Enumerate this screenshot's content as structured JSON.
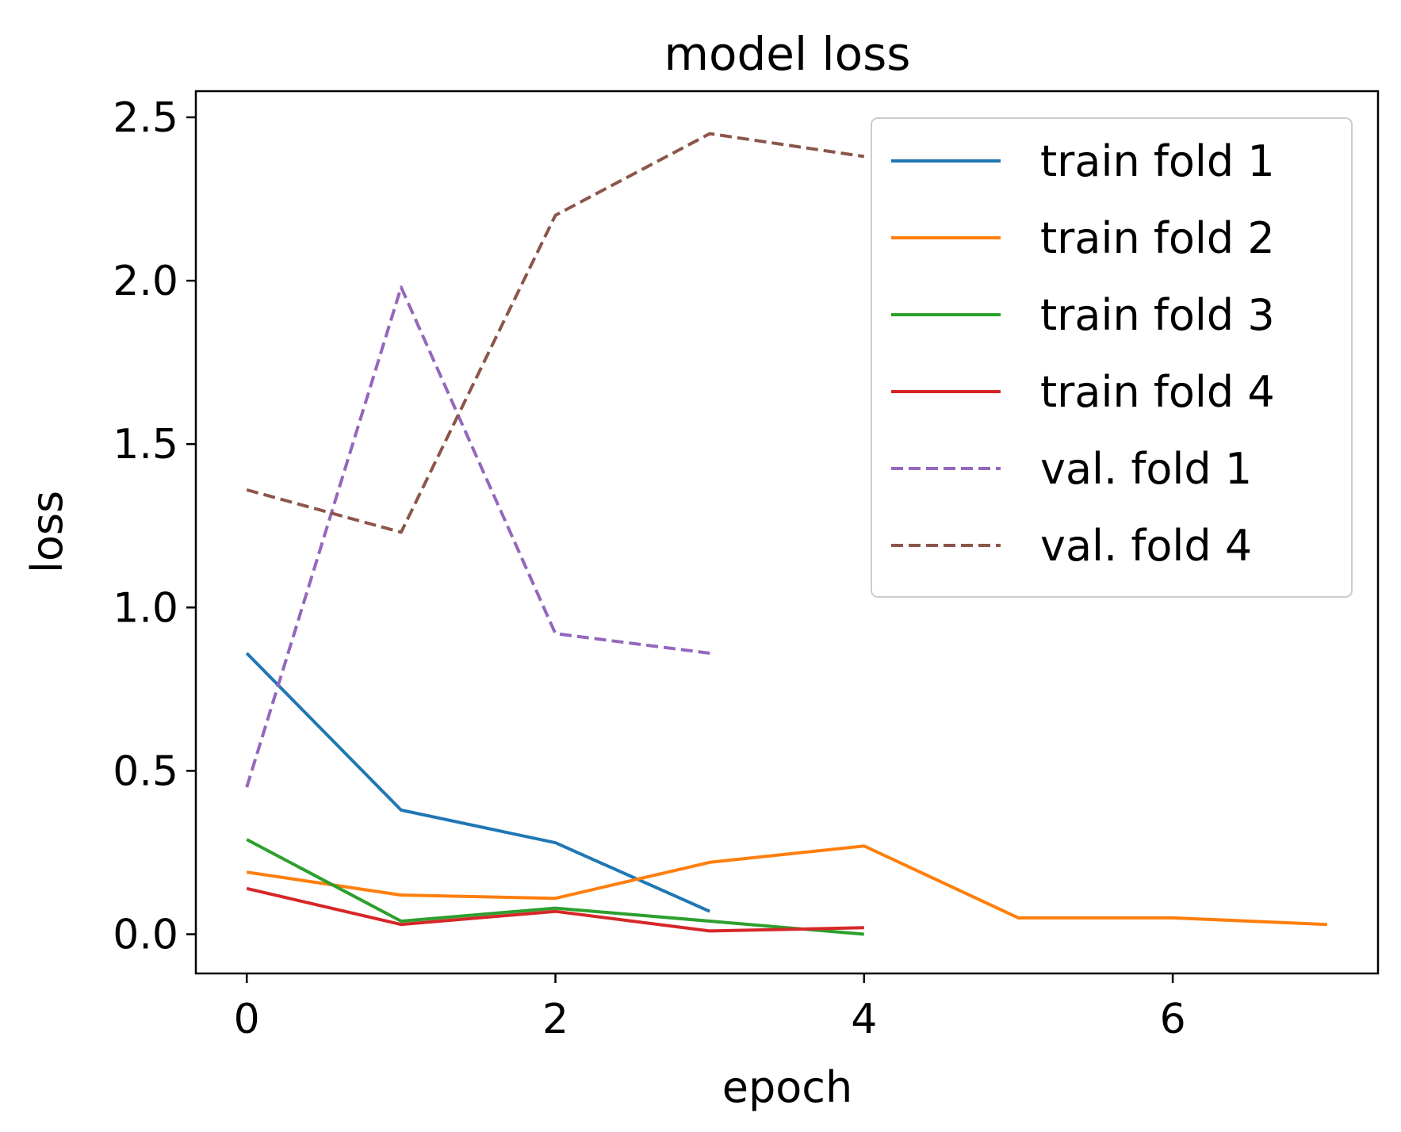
{
  "chart_data": {
    "type": "line",
    "title": "model loss",
    "xlabel": "epoch",
    "ylabel": "loss",
    "xlim": [
      -0.33,
      7.33
    ],
    "ylim": [
      -0.12,
      2.58
    ],
    "xticks": [
      0,
      2,
      4,
      6
    ],
    "xtick_labels": [
      "0",
      "2",
      "4",
      "6"
    ],
    "yticks": [
      0.0,
      0.5,
      1.0,
      1.5,
      2.0,
      2.5
    ],
    "ytick_labels": [
      "0.0",
      "0.5",
      "1.0",
      "1.5",
      "2.0",
      "2.5"
    ],
    "grid": false,
    "legend_position": "top-right",
    "series": [
      {
        "name": "train fold 1",
        "color": "#1f77b4",
        "dash": "solid",
        "x": [
          0,
          1,
          2,
          3
        ],
        "y": [
          0.86,
          0.38,
          0.28,
          0.07
        ]
      },
      {
        "name": "train fold 2",
        "color": "#ff7f0e",
        "dash": "solid",
        "x": [
          0,
          1,
          2,
          3,
          4,
          5,
          6,
          7
        ],
        "y": [
          0.19,
          0.12,
          0.11,
          0.22,
          0.27,
          0.05,
          0.05,
          0.03
        ]
      },
      {
        "name": "train fold 3",
        "color": "#2ca02c",
        "dash": "solid",
        "x": [
          0,
          1,
          2,
          3,
          4
        ],
        "y": [
          0.29,
          0.04,
          0.08,
          0.04,
          0.0
        ]
      },
      {
        "name": "train fold 4",
        "color": "#d62728",
        "dash": "solid",
        "x": [
          0,
          1,
          2,
          3,
          4
        ],
        "y": [
          0.14,
          0.03,
          0.07,
          0.01,
          0.02
        ]
      },
      {
        "name": "val. fold 1",
        "color": "#9467bd",
        "dash": "dashed",
        "x": [
          0,
          1,
          2,
          3
        ],
        "y": [
          0.45,
          1.98,
          0.92,
          0.86
        ]
      },
      {
        "name": "val. fold 4",
        "color": "#8c564b",
        "dash": "dashed",
        "x": [
          0,
          1,
          2,
          3,
          4
        ],
        "y": [
          1.36,
          1.23,
          2.2,
          2.45,
          2.38
        ]
      }
    ]
  }
}
